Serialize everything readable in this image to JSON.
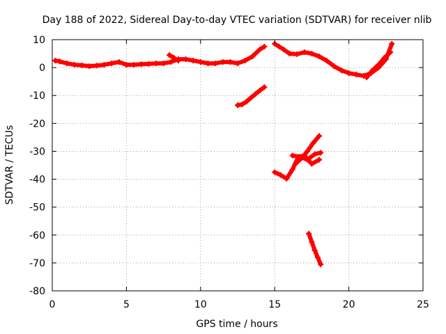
{
  "chart_data": {
    "type": "scatter",
    "title": "Day 188 of 2022, Sidereal Day-to-day VTEC variation (SDTVAR) for receiver nlib",
    "xlabel": "GPS time / hours",
    "ylabel": "SDTVAR / TECUs",
    "xlim": [
      0,
      25
    ],
    "ylim": [
      -80,
      10
    ],
    "xticks": [
      0,
      5,
      10,
      15,
      20,
      25
    ],
    "yticks": [
      -80,
      -70,
      -60,
      -50,
      -40,
      -30,
      -20,
      -10,
      0,
      10
    ],
    "xtick_labels": [
      "0",
      "5",
      "10",
      "15",
      "20",
      "25"
    ],
    "ytick_labels": [
      "-80",
      "-70",
      "-60",
      "-50",
      "-40",
      "-30",
      "-20",
      "-10",
      "0",
      "10"
    ],
    "grid": true,
    "marker_color": "#ff0000",
    "series": [
      {
        "name": "baseline-arc",
        "x": [
          0.2,
          0.5,
          1.0,
          1.5,
          2.0,
          2.5,
          3.0,
          3.5,
          4.0,
          4.5,
          5.0,
          5.5,
          6.0,
          6.5,
          7.0,
          7.5,
          8.0,
          8.5,
          9.0,
          9.5,
          10.0,
          10.5,
          11.0,
          11.5,
          12.0,
          12.5,
          13.0,
          13.5,
          14.0,
          14.3
        ],
        "y": [
          2.5,
          2.2,
          1.5,
          1.0,
          0.8,
          0.5,
          0.7,
          1.0,
          1.5,
          2.0,
          1.0,
          1.0,
          1.2,
          1.3,
          1.5,
          1.5,
          2.0,
          3.0,
          3.0,
          2.5,
          2.0,
          1.5,
          1.5,
          2.0,
          2.0,
          1.5,
          2.5,
          4.0,
          6.5,
          7.5
        ]
      },
      {
        "name": "spike-arc-12h",
        "x": [
          7.9,
          8.2,
          8.5
        ],
        "y": [
          4.5,
          3.5,
          2.5
        ]
      },
      {
        "name": "arc-12-14h",
        "x": [
          12.5,
          12.8,
          13.1,
          13.4,
          13.7,
          14.0,
          14.3
        ],
        "y": [
          -13.5,
          -13.2,
          -12.2,
          -10.8,
          -9.5,
          -8.2,
          -7.0
        ]
      },
      {
        "name": "arc-15-23h",
        "x": [
          15.0,
          15.3,
          15.6,
          16.0,
          16.5,
          17.0,
          17.5,
          18.0,
          18.5,
          19.0,
          19.5,
          20.0,
          20.5,
          21.0,
          21.5,
          22.0,
          22.5,
          22.9
        ],
        "y": [
          8.5,
          7.5,
          6.5,
          5.0,
          4.8,
          5.5,
          5.0,
          4.0,
          2.5,
          0.5,
          -1.0,
          -2.0,
          -2.5,
          -3.0,
          -2.0,
          0.0,
          3.0,
          8.5
        ]
      },
      {
        "name": "arc-21-23h-upper",
        "x": [
          21.2,
          21.6,
          22.0,
          22.4,
          22.8
        ],
        "y": [
          -3.5,
          -1.0,
          1.0,
          3.5,
          5.5
        ]
      },
      {
        "name": "arc-15-17h-low",
        "x": [
          15.0,
          15.4,
          15.8,
          16.2,
          16.6,
          17.0,
          17.5,
          18.0
        ],
        "y": [
          -37.5,
          -38.5,
          -39.8,
          -36.5,
          -32.0,
          -31.5,
          -34.5,
          -33.0
        ]
      },
      {
        "name": "arc-16-18h-rise",
        "x": [
          16.2,
          16.7,
          17.2,
          17.7,
          18.1
        ],
        "y": [
          -31.5,
          -32.0,
          -33.0,
          -31.0,
          -30.5
        ]
      },
      {
        "name": "arc-16-18h-high",
        "x": [
          16.4,
          16.8,
          17.2,
          17.6,
          18.0
        ],
        "y": [
          -34.5,
          -32.5,
          -30.0,
          -27.0,
          -24.5
        ]
      },
      {
        "name": "arc-17-18h-drop",
        "x": [
          17.3,
          17.5,
          17.7,
          17.9,
          18.1
        ],
        "y": [
          -59.5,
          -62.5,
          -65.5,
          -68.0,
          -70.5
        ]
      }
    ]
  }
}
